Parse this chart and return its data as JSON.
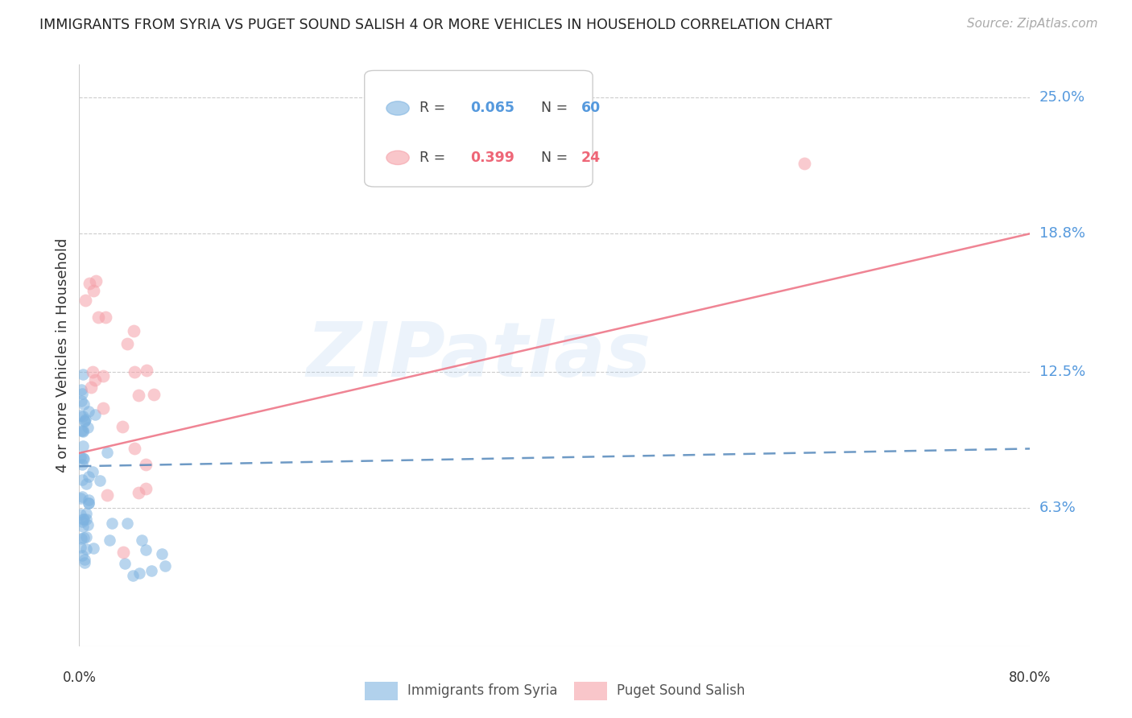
{
  "title": "IMMIGRANTS FROM SYRIA VS PUGET SOUND SALISH 4 OR MORE VEHICLES IN HOUSEHOLD CORRELATION CHART",
  "source": "Source: ZipAtlas.com",
  "ylabel": "4 or more Vehicles in Household",
  "ytick_labels": [
    "6.3%",
    "12.5%",
    "18.8%",
    "25.0%"
  ],
  "ytick_values": [
    0.063,
    0.125,
    0.188,
    0.25
  ],
  "xlim": [
    0.0,
    0.8
  ],
  "ylim": [
    0.0,
    0.265
  ],
  "legend_blue_R": "0.065",
  "legend_blue_N": "60",
  "legend_pink_R": "0.399",
  "legend_pink_N": "24",
  "label_blue": "Immigrants from Syria",
  "label_pink": "Puget Sound Salish",
  "blue_color": "#7EB3E0",
  "pink_color": "#F5A0A8",
  "blue_line_color": "#5588BB",
  "pink_line_color": "#EE7788",
  "watermark": "ZIPatlas",
  "blue_R": 0.065,
  "pink_R": 0.399,
  "blue_line_y0": 0.082,
  "blue_line_y1": 0.09,
  "pink_line_y0": 0.088,
  "pink_line_y1": 0.188
}
